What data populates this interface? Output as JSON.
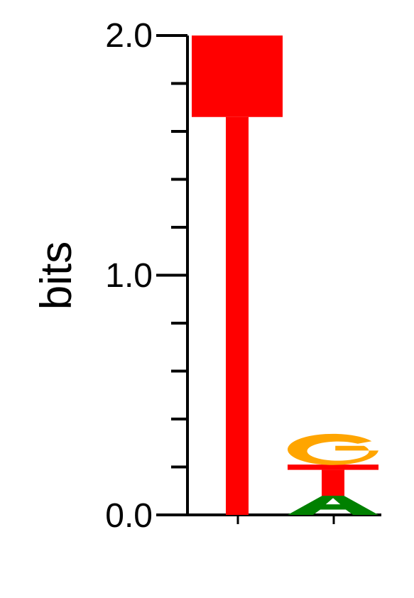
{
  "chart_data": {
    "type": "sequence-logo",
    "ylabel": "bits",
    "ylim": [
      0,
      2.0
    ],
    "y_tick_labels": [
      "2.0",
      "1.0",
      "0.0"
    ],
    "y_ticks_major": [
      0,
      1.0,
      2.0
    ],
    "y_ticks_minor": [
      0.2,
      0.4,
      0.6,
      0.8,
      1.2,
      1.4,
      1.6,
      1.8
    ],
    "positions": [
      {
        "index": 1,
        "letters": [
          {
            "letter": "T",
            "bits": 2.0,
            "color": "#ff0000"
          }
        ]
      },
      {
        "index": 2,
        "letters": [
          {
            "letter": "A",
            "bits": 0.08,
            "color": "#008000"
          },
          {
            "letter": "T",
            "bits": 0.13,
            "color": "#ff0000"
          },
          {
            "letter": "G",
            "bits": 0.13,
            "color": "#ffa500"
          }
        ]
      }
    ]
  }
}
